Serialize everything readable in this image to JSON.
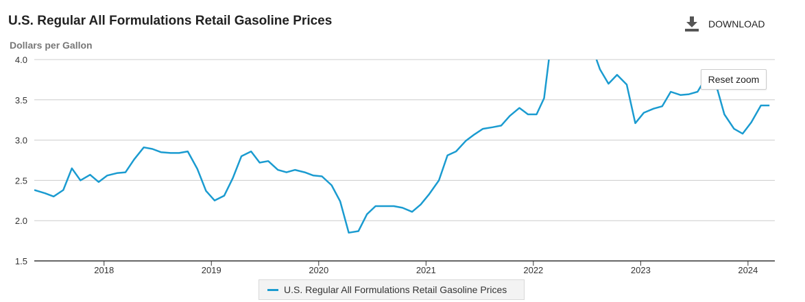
{
  "header": {
    "title": "U.S. Regular All Formulations Retail Gasoline Prices",
    "unit_label": "Dollars per Gallon",
    "download_label": "DOWNLOAD",
    "download_icon": "download-icon"
  },
  "controls": {
    "reset_zoom_label": "Reset zoom"
  },
  "colors": {
    "series": "#1a9bd0",
    "grid": "#cccccc",
    "axis": "#333333"
  },
  "chart_data": {
    "type": "line",
    "title": "U.S. Regular All Formulations Retail Gasoline Prices",
    "ylabel": "Dollars per Gallon",
    "xlabel": "",
    "ylim": [
      1.5,
      4.0
    ],
    "xlim": [
      2017.35,
      2024.25
    ],
    "yticks": [
      4.0,
      3.5,
      3.0,
      2.5,
      2.0,
      1.5
    ],
    "ytick_labels": [
      "4.0",
      "3.5",
      "3.0",
      "2.5",
      "2.0",
      "1.5"
    ],
    "xticks": [
      2018,
      2019,
      2020,
      2021,
      2022,
      2023,
      2024
    ],
    "xtick_labels": [
      "2018",
      "2019",
      "2020",
      "2021",
      "2022",
      "2023",
      "2024"
    ],
    "grid": true,
    "legend": {
      "position": "bottom-center",
      "label": "U.S. Regular All Formulations Retail Gasoline Prices"
    },
    "series": [
      {
        "name": "U.S. Regular All Formulations Retail Gasoline Prices",
        "x": [
          2017.35,
          2017.45,
          2017.53,
          2017.62,
          2017.7,
          2017.78,
          2017.87,
          2017.95,
          2018.03,
          2018.12,
          2018.2,
          2018.28,
          2018.37,
          2018.45,
          2018.53,
          2018.62,
          2018.7,
          2018.78,
          2018.87,
          2018.95,
          2019.03,
          2019.12,
          2019.2,
          2019.28,
          2019.37,
          2019.45,
          2019.53,
          2019.62,
          2019.7,
          2019.78,
          2019.87,
          2019.95,
          2020.03,
          2020.12,
          2020.2,
          2020.28,
          2020.37,
          2020.45,
          2020.53,
          2020.62,
          2020.7,
          2020.78,
          2020.87,
          2020.95,
          2021.03,
          2021.12,
          2021.2,
          2021.28,
          2021.37,
          2021.45,
          2021.53,
          2021.62,
          2021.7,
          2021.78,
          2021.87,
          2021.95,
          2022.03,
          2022.1,
          2022.145,
          2022.588,
          2022.62,
          2022.7,
          2022.78,
          2022.87,
          2022.95,
          2023.03,
          2023.12,
          2023.2,
          2023.28,
          2023.37,
          2023.45,
          2023.53,
          2023.62,
          2023.7,
          2023.78,
          2023.87,
          2023.95,
          2024.03,
          2024.12,
          2024.2
        ],
        "values": [
          2.38,
          2.34,
          2.3,
          2.38,
          2.65,
          2.5,
          2.57,
          2.48,
          2.56,
          2.59,
          2.6,
          2.76,
          2.91,
          2.89,
          2.85,
          2.84,
          2.84,
          2.86,
          2.64,
          2.37,
          2.25,
          2.31,
          2.53,
          2.8,
          2.86,
          2.72,
          2.74,
          2.63,
          2.6,
          2.63,
          2.6,
          2.56,
          2.55,
          2.44,
          2.24,
          1.85,
          1.87,
          2.08,
          2.18,
          2.18,
          2.18,
          2.16,
          2.11,
          2.2,
          2.33,
          2.5,
          2.81,
          2.86,
          2.99,
          3.07,
          3.14,
          3.16,
          3.18,
          3.3,
          3.4,
          3.32,
          3.32,
          3.52,
          4.0,
          4.0,
          3.88,
          3.7,
          3.81,
          3.69,
          3.21,
          3.34,
          3.39,
          3.42,
          3.6,
          3.56,
          3.57,
          3.6,
          3.8,
          3.7,
          3.32,
          3.14,
          3.08,
          3.22,
          3.43,
          3.43
        ]
      }
    ]
  }
}
